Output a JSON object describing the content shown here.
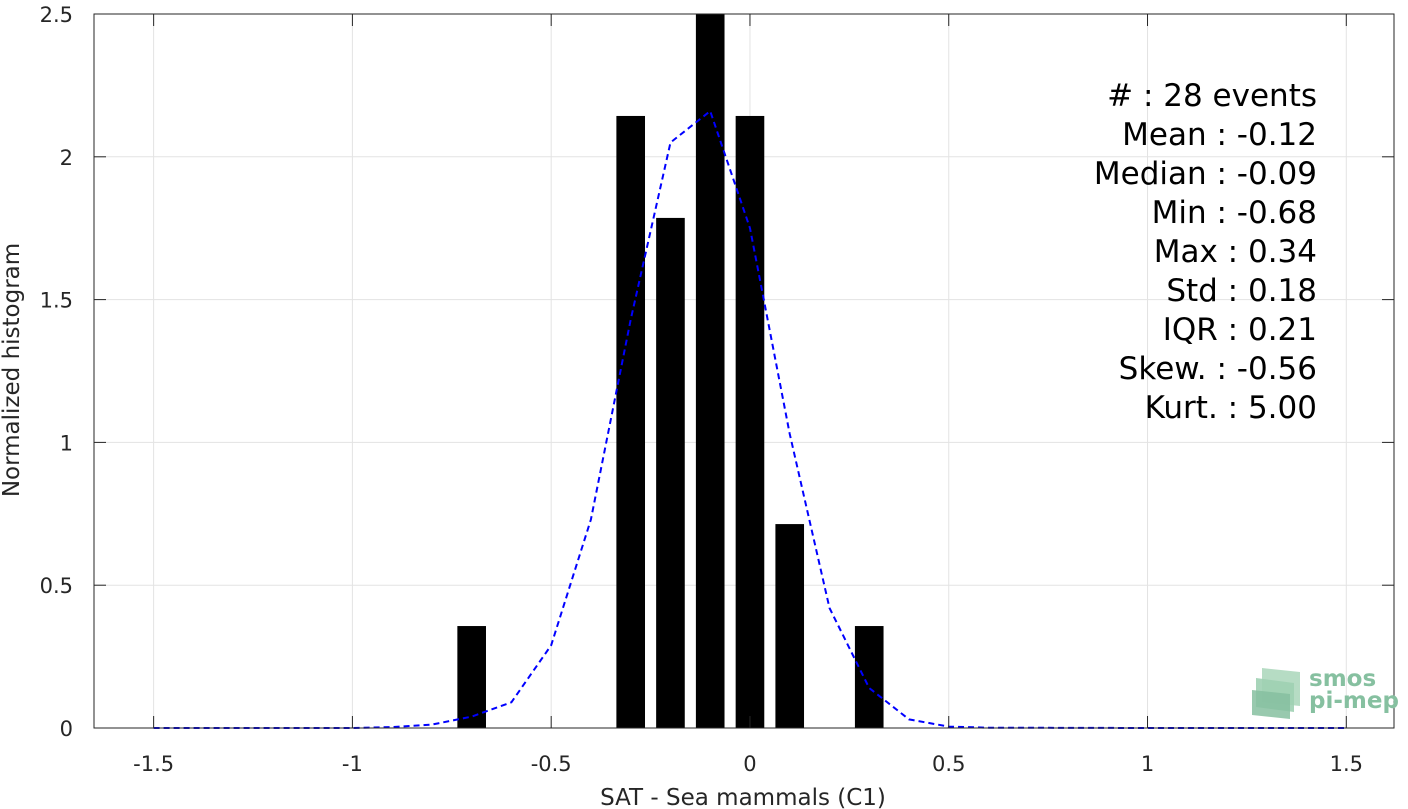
{
  "chart_data": {
    "type": "bar",
    "xlabel": "SAT - Sea mammals (C1)",
    "ylabel": "Normalized histogram",
    "xlim": [
      -1.65,
      1.62
    ],
    "ylim": [
      0,
      2.5
    ],
    "xticks": [
      -1.5,
      -1,
      -0.5,
      0,
      0.5,
      1,
      1.5
    ],
    "xtick_labels": [
      "-1.5",
      "-1",
      "-0.5",
      "0",
      "0.5",
      "1",
      "1.5"
    ],
    "yticks": [
      0,
      0.5,
      1,
      1.5,
      2,
      2.5
    ],
    "ytick_labels": [
      "0",
      "0.5",
      "1",
      "1.5",
      "2",
      "2.5"
    ],
    "grid": true,
    "bar_color": "#000000",
    "bar_width": 0.072,
    "bars": [
      {
        "x": -0.7,
        "value": 0.357
      },
      {
        "x": -0.3,
        "value": 2.143
      },
      {
        "x": -0.2,
        "value": 1.786
      },
      {
        "x": -0.1,
        "value": 2.5
      },
      {
        "x": 0.0,
        "value": 2.143
      },
      {
        "x": 0.1,
        "value": 0.714
      },
      {
        "x": 0.3,
        "value": 0.357
      }
    ],
    "fit_curve": {
      "style": "dashed",
      "color": "#0000ff",
      "x": [
        -1.5,
        -1.0,
        -0.9,
        -0.8,
        -0.7,
        -0.6,
        -0.5,
        -0.4,
        -0.3,
        -0.2,
        -0.1,
        0.0,
        0.1,
        0.2,
        0.3,
        0.4,
        0.5,
        0.6,
        1.0,
        1.5
      ],
      "y": [
        0,
        0,
        0.003,
        0.012,
        0.04,
        0.09,
        0.29,
        0.73,
        1.43,
        2.05,
        2.16,
        1.75,
        1.03,
        0.42,
        0.14,
        0.03,
        0.005,
        0.001,
        0,
        0
      ]
    },
    "stats": [
      {
        "label": "#  : 28 events"
      },
      {
        "label": "Mean : -0.12"
      },
      {
        "label": "Median : -0.09"
      },
      {
        "label": "Min : -0.68"
      },
      {
        "label": "Max : 0.34"
      },
      {
        "label": "Std : 0.18"
      },
      {
        "label": "IQR : 0.21"
      },
      {
        "label": "Skew. : -0.56"
      },
      {
        "label": "Kurt. : 5.00"
      }
    ]
  },
  "logo": {
    "line1": "smos",
    "line2": "pi-mep",
    "color": "#86c0a0"
  }
}
